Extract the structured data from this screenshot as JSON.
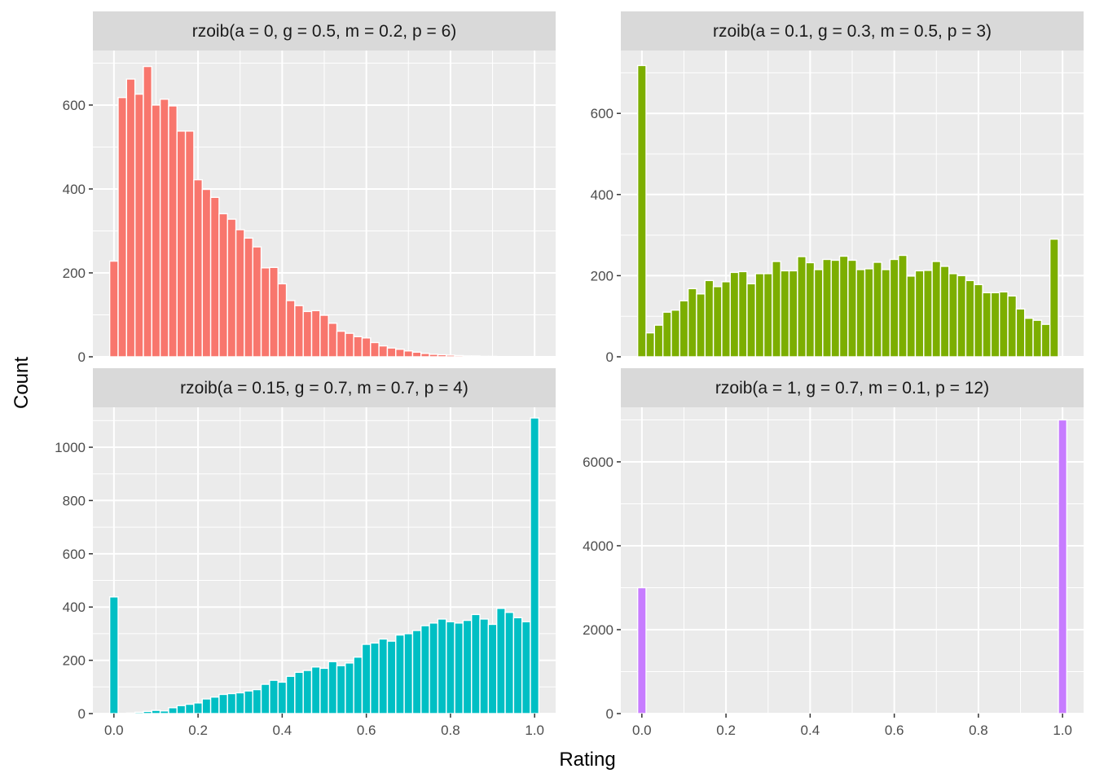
{
  "chart_data": {
    "type": "bar",
    "xlabel": "Rating",
    "ylabel": "Count",
    "grid": true,
    "legend": "none",
    "panels": [
      {
        "title": "rzoib(a = 0, g = 0.5, m = 0.2, p = 6)",
        "color": "#F8766D",
        "ylim": [
          0,
          730
        ],
        "yticks": [
          0,
          200,
          400,
          600
        ],
        "ytick_labels": [
          "0",
          "200",
          "400",
          "600"
        ],
        "values": [
          228,
          618,
          662,
          626,
          692,
          600,
          614,
          598,
          538,
          538,
          422,
          399,
          380,
          341,
          328,
          303,
          283,
          262,
          212,
          213,
          174,
          134,
          122,
          108,
          110,
          99,
          80,
          61,
          56,
          48,
          45,
          34,
          26,
          21,
          18,
          14,
          11,
          8,
          6,
          5,
          4,
          3,
          2,
          2,
          1,
          1,
          0,
          0,
          0,
          0,
          0
        ]
      },
      {
        "title": "rzoib(a = 0.1, g = 0.3, m = 0.5, p = 3)",
        "color": "#7CAE00",
        "ylim": [
          0,
          755
        ],
        "yticks": [
          0,
          200,
          400,
          600
        ],
        "ytick_labels": [
          "0",
          "200",
          "400",
          "600"
        ],
        "values": [
          718,
          59,
          78,
          110,
          115,
          138,
          168,
          155,
          188,
          173,
          185,
          208,
          210,
          180,
          205,
          205,
          235,
          212,
          212,
          247,
          232,
          215,
          240,
          238,
          248,
          238,
          215,
          217,
          233,
          215,
          240,
          250,
          199,
          212,
          213,
          235,
          223,
          205,
          200,
          188,
          178,
          158,
          158,
          160,
          150,
          118,
          95,
          90,
          80,
          290
        ]
      },
      {
        "title": "rzoib(a = 0.15, g = 0.7, m = 0.7, p = 4)",
        "color": "#00BFC4",
        "ylim": [
          0,
          1150
        ],
        "yticks": [
          0,
          200,
          400,
          600,
          800,
          1000
        ],
        "ytick_labels": [
          "0",
          "200",
          "400",
          "600",
          "800",
          "1000"
        ],
        "values": [
          438,
          0,
          2,
          5,
          8,
          12,
          10,
          22,
          30,
          35,
          40,
          55,
          62,
          72,
          75,
          78,
          85,
          90,
          110,
          125,
          118,
          140,
          155,
          162,
          175,
          170,
          195,
          180,
          190,
          212,
          260,
          265,
          280,
          272,
          295,
          300,
          312,
          330,
          340,
          355,
          345,
          340,
          350,
          372,
          355,
          335,
          395,
          380,
          360,
          345,
          1110
        ]
      },
      {
        "title": "rzoib(a = 1, g = 0.7, m = 0.1, p = 12)",
        "color": "#C77CFF",
        "ylim": [
          0,
          7300
        ],
        "yticks": [
          0,
          2000,
          4000,
          6000
        ],
        "ytick_labels": [
          "0",
          "2000",
          "4000",
          "6000"
        ],
        "values": [
          3000,
          0,
          0,
          0,
          0,
          0,
          0,
          0,
          0,
          0,
          0,
          0,
          0,
          0,
          0,
          0,
          0,
          0,
          0,
          0,
          0,
          0,
          0,
          0,
          0,
          0,
          0,
          0,
          0,
          0,
          0,
          0,
          0,
          0,
          0,
          0,
          0,
          0,
          0,
          0,
          0,
          0,
          0,
          0,
          0,
          0,
          0,
          0,
          0,
          0,
          7000
        ]
      }
    ],
    "x_range": [
      -0.05,
      1.05
    ],
    "xticks": [
      0,
      0.2,
      0.4,
      0.6,
      0.8,
      1.0
    ],
    "xtick_labels": [
      "0.0",
      "0.2",
      "0.4",
      "0.6",
      "0.8",
      "1.0"
    ]
  }
}
